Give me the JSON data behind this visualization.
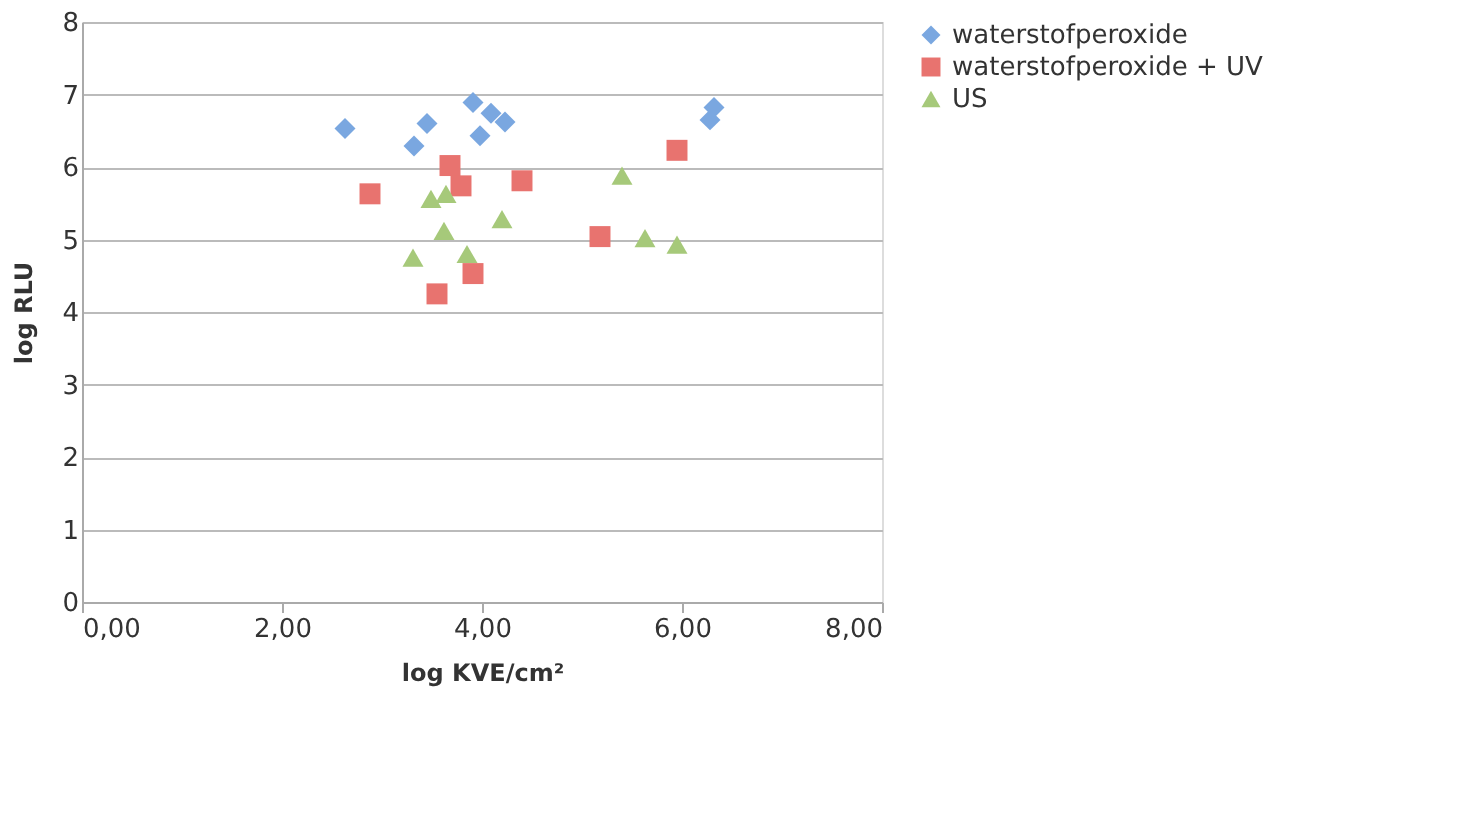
{
  "chart_data": {
    "type": "scatter",
    "xlabel": "log KVE/cm²",
    "ylabel": "log RLU",
    "xlim": [
      0,
      8
    ],
    "xticks": [
      {
        "value": 0,
        "label": "0,00"
      },
      {
        "value": 2,
        "label": "2,00"
      },
      {
        "value": 4,
        "label": "4,00"
      },
      {
        "value": 6,
        "label": "6,00"
      },
      {
        "value": 8,
        "label": "8,00"
      }
    ],
    "ylim": [
      0,
      8
    ],
    "yticks": [
      0,
      1,
      2,
      3,
      4,
      5,
      6,
      7,
      8
    ],
    "grid": "y",
    "legend": "right",
    "series": [
      {
        "name": "waterstofperoxide",
        "color": "#7aa7e0",
        "marker": "diamond",
        "x": [
          2.63,
          3.32,
          3.45,
          3.91,
          3.98,
          4.09,
          4.23,
          6.28,
          6.32
        ],
        "values": [
          6.53,
          6.29,
          6.6,
          6.89,
          6.43,
          6.74,
          6.62,
          6.65,
          6.82
        ]
      },
      {
        "name": "waterstofperoxide + UV",
        "color": "#e8736f",
        "marker": "square",
        "x": [
          2.88,
          3.55,
          3.68,
          3.79,
          3.91,
          4.4,
          5.18,
          5.95
        ],
        "values": [
          5.63,
          4.25,
          6.02,
          5.74,
          4.53,
          5.81,
          5.04,
          6.23
        ]
      },
      {
        "name": "US",
        "color": "#a6c97a",
        "marker": "triangle",
        "x": [
          3.31,
          3.49,
          3.64,
          3.62,
          3.85,
          4.2,
          5.4,
          5.63,
          5.95
        ],
        "values": [
          4.75,
          5.56,
          5.63,
          5.12,
          4.8,
          5.28,
          5.88,
          5.02,
          4.93
        ]
      }
    ]
  }
}
